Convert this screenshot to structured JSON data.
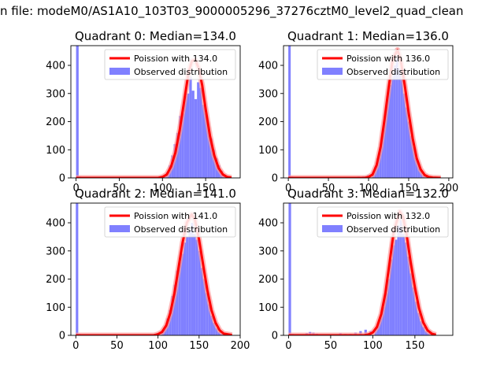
{
  "figure": {
    "suptitle": "n file: modeM0/AS1A10_103T03_9000005296_37276cztM0_level2_quad_clean"
  },
  "colors": {
    "hist": "#8080ff",
    "poisson": "#ff0000",
    "poisson_under": "#ff9999"
  },
  "chart_data": [
    {
      "type": "bar",
      "title": "Quadrant 0: Median=134.0",
      "median": 134.0,
      "xlim": [
        -6,
        190
      ],
      "ylim": [
        0,
        470
      ],
      "xticks": [
        0,
        50,
        100,
        150
      ],
      "xtick_labels": [
        "0",
        "50",
        "100",
        "150"
      ],
      "yticks": [
        0,
        100,
        200,
        300,
        400
      ],
      "ytick_labels": [
        "0",
        "100",
        "200",
        "300",
        "400"
      ],
      "legend": {
        "placement": "top-right",
        "entries": [
          "Poission with 134.0",
          "Observed distribution"
        ]
      },
      "series": [
        {
          "name": "Poission with 134.0",
          "type": "line",
          "x": [
            0,
            95,
            100,
            105,
            110,
            115,
            120,
            125,
            130,
            134,
            138,
            142,
            146,
            150,
            155,
            160,
            165,
            170,
            175,
            180
          ],
          "y": [
            0,
            0,
            3,
            12,
            40,
            90,
            170,
            270,
            370,
            415,
            420,
            390,
            330,
            245,
            150,
            80,
            35,
            12,
            3,
            1
          ]
        },
        {
          "name": "Observed distribution",
          "type": "hist",
          "bin_width": 3,
          "bins": [
            [
              0,
              470
            ],
            [
              3,
              5
            ],
            [
              92,
              3
            ],
            [
              95,
              5
            ],
            [
              98,
              8
            ],
            [
              101,
              10
            ],
            [
              104,
              20
            ],
            [
              107,
              45
            ],
            [
              110,
              80
            ],
            [
              113,
              120
            ],
            [
              116,
              160
            ],
            [
              119,
              220
            ],
            [
              122,
              230
            ],
            [
              125,
              290
            ],
            [
              128,
              300
            ],
            [
              131,
              360
            ],
            [
              134,
              310
            ],
            [
              137,
              280
            ],
            [
              140,
              340
            ],
            [
              143,
              320
            ],
            [
              146,
              260
            ],
            [
              149,
              230
            ],
            [
              152,
              180
            ],
            [
              155,
              140
            ],
            [
              158,
              100
            ],
            [
              161,
              70
            ],
            [
              164,
              45
            ],
            [
              167,
              25
            ],
            [
              170,
              12
            ],
            [
              173,
              6
            ],
            [
              176,
              3
            ]
          ]
        }
      ]
    },
    {
      "type": "bar",
      "title": "Quadrant 1: Median=136.0",
      "median": 136.0,
      "xlim": [
        -6,
        205
      ],
      "ylim": [
        0,
        470
      ],
      "xticks": [
        0,
        50,
        100,
        150,
        200
      ],
      "xtick_labels": [
        "0",
        "50",
        "100",
        "150",
        "200"
      ],
      "yticks": [
        0,
        100,
        200,
        300,
        400
      ],
      "ytick_labels": [
        "0",
        "100",
        "200",
        "300",
        "400"
      ],
      "legend": {
        "placement": "top-right",
        "entries": [
          "Poission with 136.0",
          "Observed distribution"
        ]
      },
      "series": [
        {
          "name": "Poission with 136.0",
          "type": "line",
          "x": [
            0,
            95,
            100,
            105,
            110,
            115,
            120,
            125,
            130,
            136,
            140,
            145,
            150,
            155,
            160,
            165,
            170,
            175,
            180,
            190
          ],
          "y": [
            0,
            0,
            3,
            12,
            45,
            110,
            210,
            320,
            420,
            455,
            420,
            330,
            230,
            140,
            70,
            30,
            10,
            3,
            1,
            0
          ]
        },
        {
          "name": "Observed distribution",
          "type": "hist",
          "bin_width": 3,
          "bins": [
            [
              0,
              470
            ],
            [
              3,
              5
            ],
            [
              80,
              4
            ],
            [
              86,
              5
            ],
            [
              92,
              6
            ],
            [
              98,
              10
            ],
            [
              104,
              20
            ],
            [
              107,
              40
            ],
            [
              110,
              70
            ],
            [
              113,
              110
            ],
            [
              116,
              160
            ],
            [
              119,
              220
            ],
            [
              122,
              290
            ],
            [
              125,
              330
            ],
            [
              128,
              360
            ],
            [
              131,
              400
            ],
            [
              134,
              430
            ],
            [
              137,
              390
            ],
            [
              140,
              360
            ],
            [
              143,
              300
            ],
            [
              146,
              250
            ],
            [
              149,
              200
            ],
            [
              152,
              150
            ],
            [
              155,
              110
            ],
            [
              158,
              70
            ],
            [
              161,
              45
            ],
            [
              164,
              25
            ],
            [
              167,
              12
            ],
            [
              170,
              6
            ],
            [
              173,
              3
            ]
          ]
        }
      ]
    },
    {
      "type": "bar",
      "title": "Quadrant 2: Median=141.0",
      "median": 141.0,
      "xlim": [
        -6,
        200
      ],
      "ylim": [
        0,
        470
      ],
      "xticks": [
        0,
        50,
        100,
        150,
        200
      ],
      "xtick_labels": [
        "0",
        "50",
        "100",
        "150",
        "200"
      ],
      "yticks": [
        0,
        100,
        200,
        300,
        400
      ],
      "ytick_labels": [
        "0",
        "100",
        "200",
        "300",
        "400"
      ],
      "legend": {
        "placement": "top-right",
        "entries": [
          "Poission with 141.0",
          "Observed distribution"
        ]
      },
      "series": [
        {
          "name": "Poission with 141.0",
          "type": "line",
          "x": [
            0,
            95,
            100,
            105,
            110,
            115,
            120,
            125,
            130,
            135,
            141,
            145,
            150,
            155,
            160,
            165,
            170,
            175,
            180,
            190
          ],
          "y": [
            0,
            0,
            4,
            12,
            35,
            80,
            150,
            240,
            330,
            400,
            430,
            410,
            340,
            250,
            160,
            90,
            45,
            18,
            6,
            1
          ]
        },
        {
          "name": "Observed distribution",
          "type": "hist",
          "bin_width": 3,
          "bins": [
            [
              0,
              470
            ],
            [
              3,
              5
            ],
            [
              92,
              4
            ],
            [
              98,
              8
            ],
            [
              104,
              15
            ],
            [
              107,
              30
            ],
            [
              110,
              60
            ],
            [
              113,
              90
            ],
            [
              116,
              140
            ],
            [
              119,
              180
            ],
            [
              122,
              230
            ],
            [
              125,
              260
            ],
            [
              128,
              290
            ],
            [
              131,
              330
            ],
            [
              134,
              350
            ],
            [
              137,
              370
            ],
            [
              140,
              400
            ],
            [
              143,
              360
            ],
            [
              146,
              340
            ],
            [
              149,
              300
            ],
            [
              152,
              240
            ],
            [
              155,
              200
            ],
            [
              158,
              150
            ],
            [
              161,
              110
            ],
            [
              164,
              70
            ],
            [
              167,
              45
            ],
            [
              170,
              25
            ],
            [
              173,
              12
            ],
            [
              176,
              6
            ],
            [
              179,
              3
            ]
          ]
        }
      ]
    },
    {
      "type": "bar",
      "title": "Quadrant 3: Median=132.0",
      "median": 132.0,
      "xlim": [
        -6,
        195
      ],
      "ylim": [
        0,
        470
      ],
      "xticks": [
        0,
        50,
        100,
        150
      ],
      "xtick_labels": [
        "0",
        "50",
        "100",
        "150"
      ],
      "yticks": [
        0,
        100,
        200,
        300,
        400
      ],
      "ytick_labels": [
        "0",
        "100",
        "200",
        "300",
        "400"
      ],
      "legend": {
        "placement": "top-right",
        "entries": [
          "Poission with 132.0",
          "Observed distribution"
        ]
      },
      "series": [
        {
          "name": "Poission with 132.0",
          "type": "line",
          "x": [
            0,
            90,
            95,
            100,
            105,
            110,
            115,
            120,
            125,
            132,
            136,
            140,
            145,
            150,
            155,
            160,
            165,
            170,
            175
          ],
          "y": [
            0,
            0,
            3,
            10,
            30,
            75,
            150,
            260,
            370,
            440,
            420,
            360,
            260,
            170,
            95,
            45,
            18,
            6,
            2
          ]
        },
        {
          "name": "Observed distribution",
          "type": "hist",
          "bin_width": 3,
          "bins": [
            [
              0,
              470
            ],
            [
              3,
              5
            ],
            [
              20,
              8
            ],
            [
              24,
              12
            ],
            [
              28,
              10
            ],
            [
              32,
              6
            ],
            [
              36,
              4
            ],
            [
              42,
              3
            ],
            [
              60,
              8
            ],
            [
              66,
              5
            ],
            [
              72,
              5
            ],
            [
              78,
              10
            ],
            [
              84,
              15
            ],
            [
              90,
              20
            ],
            [
              96,
              15
            ],
            [
              102,
              25
            ],
            [
              105,
              40
            ],
            [
              108,
              70
            ],
            [
              111,
              100
            ],
            [
              114,
              150
            ],
            [
              117,
              200
            ],
            [
              120,
              270
            ],
            [
              123,
              320
            ],
            [
              126,
              340
            ],
            [
              129,
              390
            ],
            [
              132,
              410
            ],
            [
              135,
              360
            ],
            [
              138,
              330
            ],
            [
              141,
              280
            ],
            [
              144,
              220
            ],
            [
              147,
              170
            ],
            [
              150,
              120
            ],
            [
              153,
              80
            ],
            [
              156,
              50
            ],
            [
              159,
              30
            ],
            [
              162,
              15
            ],
            [
              165,
              8
            ],
            [
              168,
              4
            ]
          ]
        }
      ]
    }
  ]
}
